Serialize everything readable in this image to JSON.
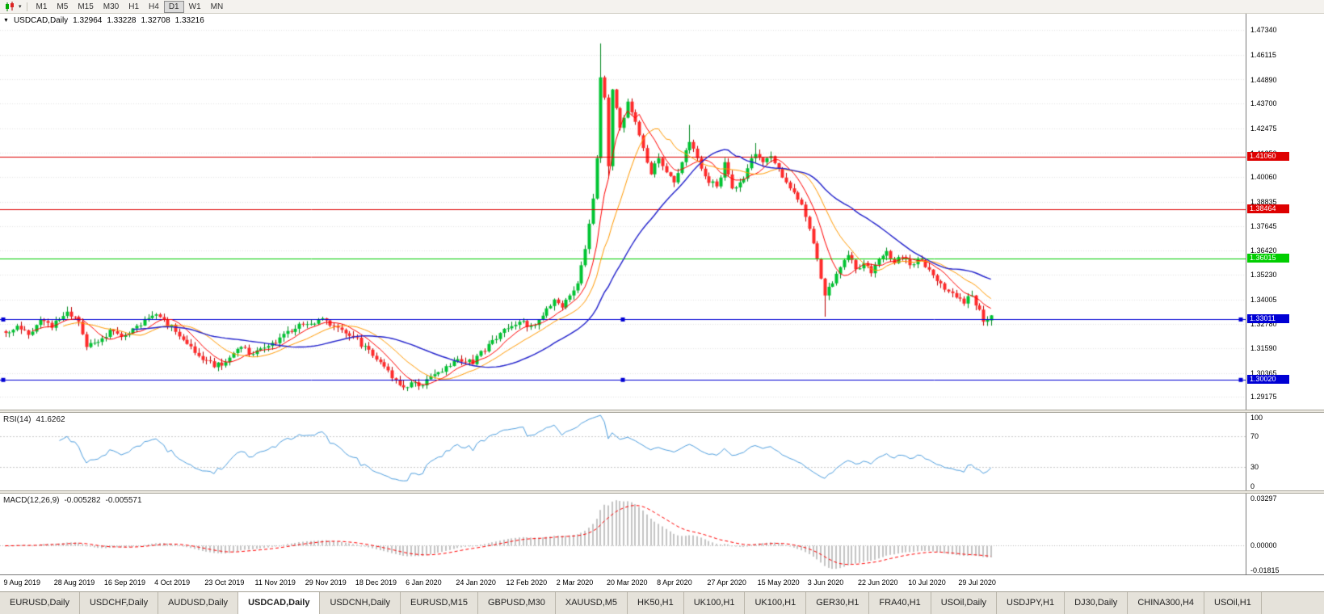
{
  "toolbar": {
    "caret": "▾",
    "timeframes": [
      {
        "label": "M1",
        "active": false
      },
      {
        "label": "M5",
        "active": false
      },
      {
        "label": "M15",
        "active": false
      },
      {
        "label": "M30",
        "active": false
      },
      {
        "label": "H1",
        "active": false
      },
      {
        "label": "H4",
        "active": false
      },
      {
        "label": "D1",
        "active": true
      },
      {
        "label": "W1",
        "active": false
      },
      {
        "label": "MN",
        "active": false
      }
    ]
  },
  "main_chart": {
    "header": {
      "menu_caret": "▼",
      "symbol_period": "USDCAD,Daily",
      "open": "1.32964",
      "high": "1.33228",
      "low": "1.32708",
      "close": "1.33216"
    },
    "y_ticks": [
      "1.47340",
      "1.46115",
      "1.44890",
      "1.43700",
      "1.42475",
      "1.41250",
      "1.40060",
      "1.38835",
      "1.37645",
      "1.36420",
      "1.35230",
      "1.34005",
      "1.32780",
      "1.31590",
      "1.30365",
      "1.29175"
    ],
    "price_range": {
      "max": 1.4815,
      "min": 1.2855
    },
    "levels": [
      {
        "label": "1.41060",
        "price": 1.4106,
        "color": "#DE0000",
        "handles": false
      },
      {
        "label": "1.38464",
        "price": 1.38464,
        "color": "#DE0000",
        "handles": false
      },
      {
        "label": "1.36015",
        "price": 1.36015,
        "color": "#00CE00",
        "handles": false
      },
      {
        "label": "1.33011",
        "price": 1.33011,
        "color": "#0000D4",
        "handles": true
      },
      {
        "label": "1.30020",
        "price": 1.3002,
        "color": "#0000D4",
        "handles": true
      }
    ],
    "ma_lines": [
      {
        "name": "fast-ma",
        "period": 8,
        "color": "#FF0000",
        "width": 1
      },
      {
        "name": "medium-ma",
        "period": 16,
        "color": "#FF9900",
        "width": 1
      },
      {
        "name": "slow-ma",
        "period": 34,
        "color": "#2222CC",
        "width": 1.4
      }
    ],
    "candle_colors": {
      "up_fill": "#00C432",
      "up_stroke": "#00861E",
      "down_fill": "#FF2A2A",
      "down_stroke": "#BB0000"
    }
  },
  "rsi_panel": {
    "label": "RSI(14)",
    "value": "41.6262",
    "line_color": "#4F9FDF",
    "levels": [
      70,
      30
    ],
    "scale_labels": [
      "100",
      "70",
      "30",
      "0"
    ],
    "range": {
      "max": 100,
      "min": 0
    }
  },
  "macd_panel": {
    "label": "MACD(12,26,9)",
    "value_main": "-0.005282",
    "value_signal": "-0.005571",
    "hist_color": "#C4C4C4",
    "signal_color": "#FF0000",
    "scale_labels": [
      "0.03297",
      "0.00000",
      "-0.01815"
    ],
    "range": {
      "max": 0.03297,
      "min": -0.01815
    }
  },
  "time_axis": {
    "labels": [
      "9 Aug 2019",
      "28 Aug 2019",
      "16 Sep 2019",
      "4 Oct 2019",
      "23 Oct 2019",
      "11 Nov 2019",
      "29 Nov 2019",
      "18 Dec 2019",
      "6 Jan 2020",
      "24 Jan 2020",
      "12 Feb 2020",
      "2 Mar 2020",
      "20 Mar 2020",
      "8 Apr 2020",
      "27 Apr 2020",
      "15 May 2020",
      "3 Jun 2020",
      "22 Jun 2020",
      "10 Jul 2020",
      "29 Jul 2020"
    ],
    "indices": [
      0,
      13,
      26,
      39,
      52,
      65,
      78,
      91,
      104,
      117,
      130,
      143,
      156,
      169,
      182,
      195,
      208,
      221,
      234,
      247
    ]
  },
  "tabs": {
    "active_index": 3,
    "items": [
      "EURUSD,Daily",
      "USDCHF,Daily",
      "AUDUSD,Daily",
      "USDCAD,Daily",
      "USDCNH,Daily",
      "EURUSD,M15",
      "GBPUSD,M30",
      "XAUUSD,M5",
      "HK50,H1",
      "UK100,H1",
      "UK100,H1",
      "GER30,H1",
      "FRA40,H1",
      "USOil,Daily",
      "USDJPY,H1",
      "DJ30,Daily",
      "CHINA300,H4",
      "USOil,H1"
    ]
  },
  "chart_data": {
    "type": "candlestick",
    "title": "USDCAD,Daily",
    "symbol": "USDCAD",
    "timeframe": "Daily",
    "last_quote": {
      "open": 1.32964,
      "high": 1.33228,
      "low": 1.32708,
      "close": 1.33216
    },
    "ylim": [
      1.2855,
      1.4815
    ],
    "num_candles": 256,
    "x_labels": [
      "9 Aug 2019",
      "28 Aug 2019",
      "16 Sep 2019",
      "4 Oct 2019",
      "23 Oct 2019",
      "11 Nov 2019",
      "29 Nov 2019",
      "18 Dec 2019",
      "6 Jan 2020",
      "24 Jan 2020",
      "12 Feb 2020",
      "2 Mar 2020",
      "20 Mar 2020",
      "8 Apr 2020",
      "27 Apr 2020",
      "15 May 2020",
      "3 Jun 2020",
      "22 Jun 2020",
      "10 Jul 2020",
      "29 Jul 2020"
    ],
    "x_label_indices": [
      0,
      13,
      26,
      39,
      52,
      65,
      78,
      91,
      104,
      117,
      130,
      143,
      156,
      169,
      182,
      195,
      208,
      221,
      234,
      247
    ],
    "horizontal_levels": [
      1.4106,
      1.38464,
      1.36015,
      1.33011,
      1.3002
    ],
    "close_anchors": [
      [
        0,
        1.3235
      ],
      [
        3,
        1.327
      ],
      [
        6,
        1.3225
      ],
      [
        9,
        1.33
      ],
      [
        12,
        1.326
      ],
      [
        16,
        1.334
      ],
      [
        19,
        1.329
      ],
      [
        21,
        1.3165
      ],
      [
        24,
        1.319
      ],
      [
        27,
        1.325
      ],
      [
        30,
        1.3215
      ],
      [
        34,
        1.327
      ],
      [
        38,
        1.332
      ],
      [
        41,
        1.33
      ],
      [
        44,
        1.324
      ],
      [
        47,
        1.318
      ],
      [
        50,
        1.312
      ],
      [
        54,
        1.3065
      ],
      [
        57,
        1.309
      ],
      [
        61,
        1.3165
      ],
      [
        64,
        1.313
      ],
      [
        68,
        1.317
      ],
      [
        72,
        1.323
      ],
      [
        76,
        1.328
      ],
      [
        81,
        1.33
      ],
      [
        85,
        1.327
      ],
      [
        89,
        1.322
      ],
      [
        93,
        1.317
      ],
      [
        97,
        1.309
      ],
      [
        100,
        1.301
      ],
      [
        103,
        1.2965
      ],
      [
        106,
        1.299
      ],
      [
        108,
        1.2975
      ],
      [
        111,
        1.303
      ],
      [
        114,
        1.307
      ],
      [
        117,
        1.3105
      ],
      [
        121,
        1.308
      ],
      [
        125,
        1.318
      ],
      [
        129,
        1.3255
      ],
      [
        133,
        1.329
      ],
      [
        136,
        1.327
      ],
      [
        139,
        1.332
      ],
      [
        142,
        1.34
      ],
      [
        144,
        1.336
      ],
      [
        146,
        1.342
      ],
      [
        148,
        1.348
      ],
      [
        150,
        1.365
      ],
      [
        152,
        1.39
      ],
      [
        153,
        1.41
      ],
      [
        154,
        1.45
      ],
      [
        155,
        1.44
      ],
      [
        156,
        1.406
      ],
      [
        157,
        1.444
      ],
      [
        159,
        1.425
      ],
      [
        161,
        1.438
      ],
      [
        163,
        1.428
      ],
      [
        165,
        1.415
      ],
      [
        167,
        1.402
      ],
      [
        169,
        1.41
      ],
      [
        171,
        1.403
      ],
      [
        173,
        1.398
      ],
      [
        175,
        1.408
      ],
      [
        177,
        1.418
      ],
      [
        179,
        1.41
      ],
      [
        181,
        1.401
      ],
      [
        184,
        1.396
      ],
      [
        186,
        1.408
      ],
      [
        188,
        1.395
      ],
      [
        190,
        1.398
      ],
      [
        192,
        1.405
      ],
      [
        194,
        1.412
      ],
      [
        196,
        1.408
      ],
      [
        198,
        1.411
      ],
      [
        200,
        1.405
      ],
      [
        202,
        1.398
      ],
      [
        204,
        1.393
      ],
      [
        206,
        1.387
      ],
      [
        208,
        1.375
      ],
      [
        210,
        1.36
      ],
      [
        212,
        1.342
      ],
      [
        214,
        1.348
      ],
      [
        216,
        1.356
      ],
      [
        218,
        1.362
      ],
      [
        220,
        1.355
      ],
      [
        222,
        1.358
      ],
      [
        224,
        1.353
      ],
      [
        226,
        1.36
      ],
      [
        228,
        1.364
      ],
      [
        230,
        1.358
      ],
      [
        232,
        1.361
      ],
      [
        234,
        1.357
      ],
      [
        236,
        1.36
      ],
      [
        238,
        1.356
      ],
      [
        240,
        1.352
      ],
      [
        242,
        1.348
      ],
      [
        244,
        1.344
      ],
      [
        246,
        1.341
      ],
      [
        248,
        1.338
      ],
      [
        250,
        1.342
      ],
      [
        252,
        1.335
      ],
      [
        253,
        1.329
      ],
      [
        254,
        1.33
      ],
      [
        255,
        1.33216
      ]
    ],
    "spikes": {
      "16": {
        "high": 1.3365
      },
      "103": {
        "low": 1.2952
      },
      "154": {
        "high": 1.4668
      },
      "156": {
        "low": 1.4
      },
      "177": {
        "high": 1.4265
      },
      "194": {
        "high": 1.4175
      },
      "212": {
        "low": 1.3315
      },
      "253": {
        "low": 1.32708
      }
    },
    "indicators": {
      "rsi": {
        "period": 14,
        "last": 41.6262
      },
      "macd": {
        "fast": 12,
        "slow": 26,
        "signal": 9,
        "last": -0.005282,
        "last_signal": -0.005571
      },
      "moving_average_periods": [
        8,
        16,
        34
      ]
    }
  }
}
